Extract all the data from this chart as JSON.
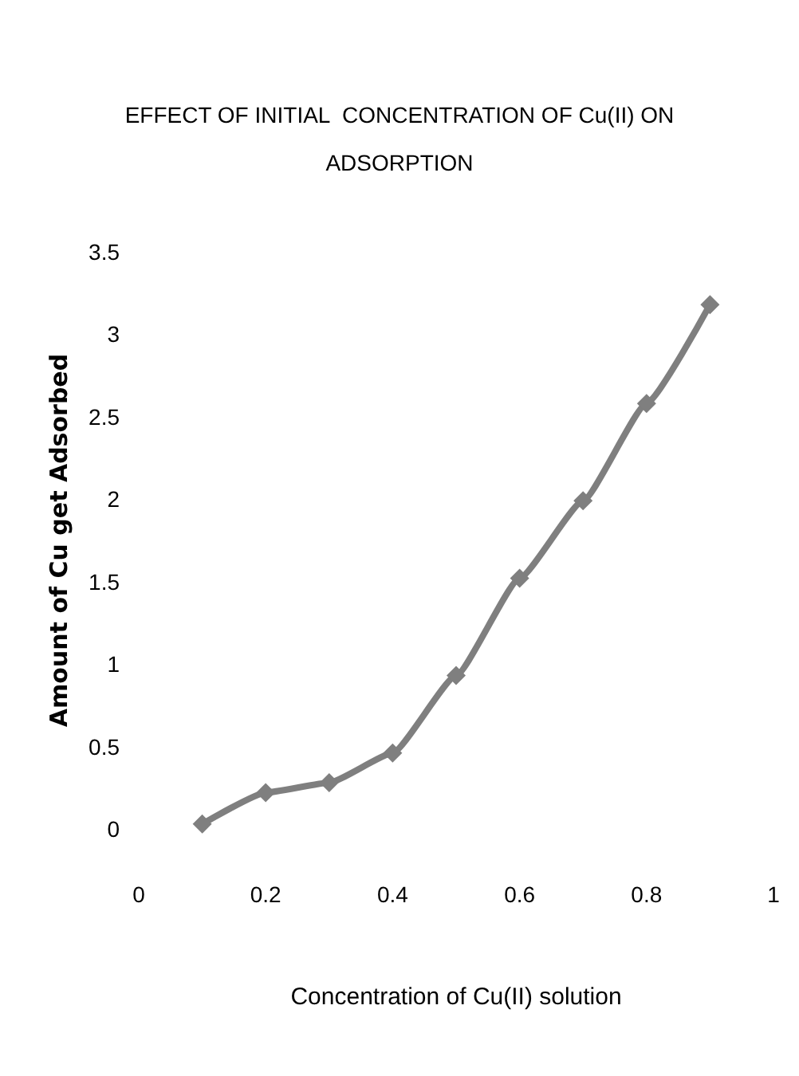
{
  "chart_data": {
    "type": "line",
    "title": "EFFECT OF INITIAL  CONCENTRATION OF Cu(II) ON\nADSORPTION",
    "xlabel": "Concentration of Cu(II) solution",
    "ylabel": "Amount of Cu get Adsorbed",
    "x": [
      0.1,
      0.2,
      0.3,
      0.4,
      0.5,
      0.6,
      0.7,
      0.8,
      0.9
    ],
    "series": [
      {
        "color": "#7f7f7f",
        "values": [
          0.03,
          0.22,
          0.28,
          0.46,
          0.93,
          1.52,
          1.99,
          2.58,
          3.18
        ]
      }
    ],
    "xlim": [
      0,
      1
    ],
    "xticks": [
      0,
      0.2,
      0.4,
      0.6,
      0.8,
      1
    ],
    "ylim": [
      0,
      3.5
    ],
    "yticks": [
      0,
      0.5,
      1,
      1.5,
      2,
      2.5,
      3,
      3.5
    ],
    "grid": false,
    "marker": "diamond",
    "line_style": "solid"
  }
}
